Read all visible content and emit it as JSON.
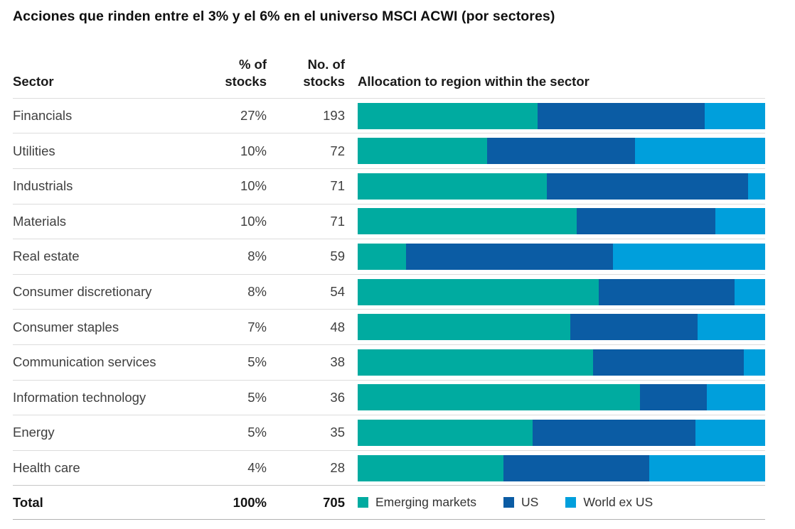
{
  "title": "Acciones que rinden entre el 3% y el 6% en el universo MSCI ACWI (por sectores)",
  "table": {
    "headers": {
      "sector": "Sector",
      "pct": [
        "% of",
        "stocks"
      ],
      "num": [
        "No. of",
        "stocks"
      ],
      "allocation": "Allocation to region within the sector"
    },
    "total": {
      "sector": "Total",
      "pct": "100%",
      "num": "705"
    }
  },
  "chart_data": {
    "type": "bar",
    "stacked": true,
    "orientation": "horizontal",
    "title": "Acciones que rinden entre el 3% y el 6% en el universo MSCI ACWI (por sectores)",
    "bar_axis_label": "Allocation to region within the sector",
    "xlim": [
      0,
      100
    ],
    "grid": false,
    "legend_position": "bottom",
    "categories": [
      "Financials",
      "Utilities",
      "Industrials",
      "Materials",
      "Real estate",
      "Consumer discretionary",
      "Consumer staples",
      "Communication services",
      "Information technology",
      "Energy",
      "Health care"
    ],
    "pct_of_stocks": [
      "27%",
      "10%",
      "10%",
      "10%",
      "8%",
      "8%",
      "7%",
      "5%",
      "5%",
      "5%",
      "4%"
    ],
    "no_of_stocks": [
      "193",
      "72",
      "71",
      "71",
      "59",
      "54",
      "48",
      "38",
      "36",
      "35",
      "28"
    ],
    "series": [
      {
        "name": "Emerging markets",
        "color": "#00ABA0",
        "values": [
          44.2,
          31.8,
          46.5,
          53.7,
          11.8,
          59.2,
          52.2,
          57.7,
          69.3,
          42.9,
          35.8
        ]
      },
      {
        "name": "US",
        "color": "#0B5CA4",
        "values": [
          41.0,
          36.2,
          49.4,
          34.0,
          50.8,
          33.3,
          31.2,
          37.1,
          16.4,
          40.0,
          35.7
        ]
      },
      {
        "name": "World ex US",
        "color": "#009FDC",
        "values": [
          14.8,
          32.0,
          4.1,
          12.3,
          37.4,
          7.5,
          16.6,
          5.2,
          14.3,
          17.1,
          28.5
        ]
      }
    ],
    "total": {
      "label": "Total",
      "pct": "100%",
      "num": "705"
    }
  }
}
